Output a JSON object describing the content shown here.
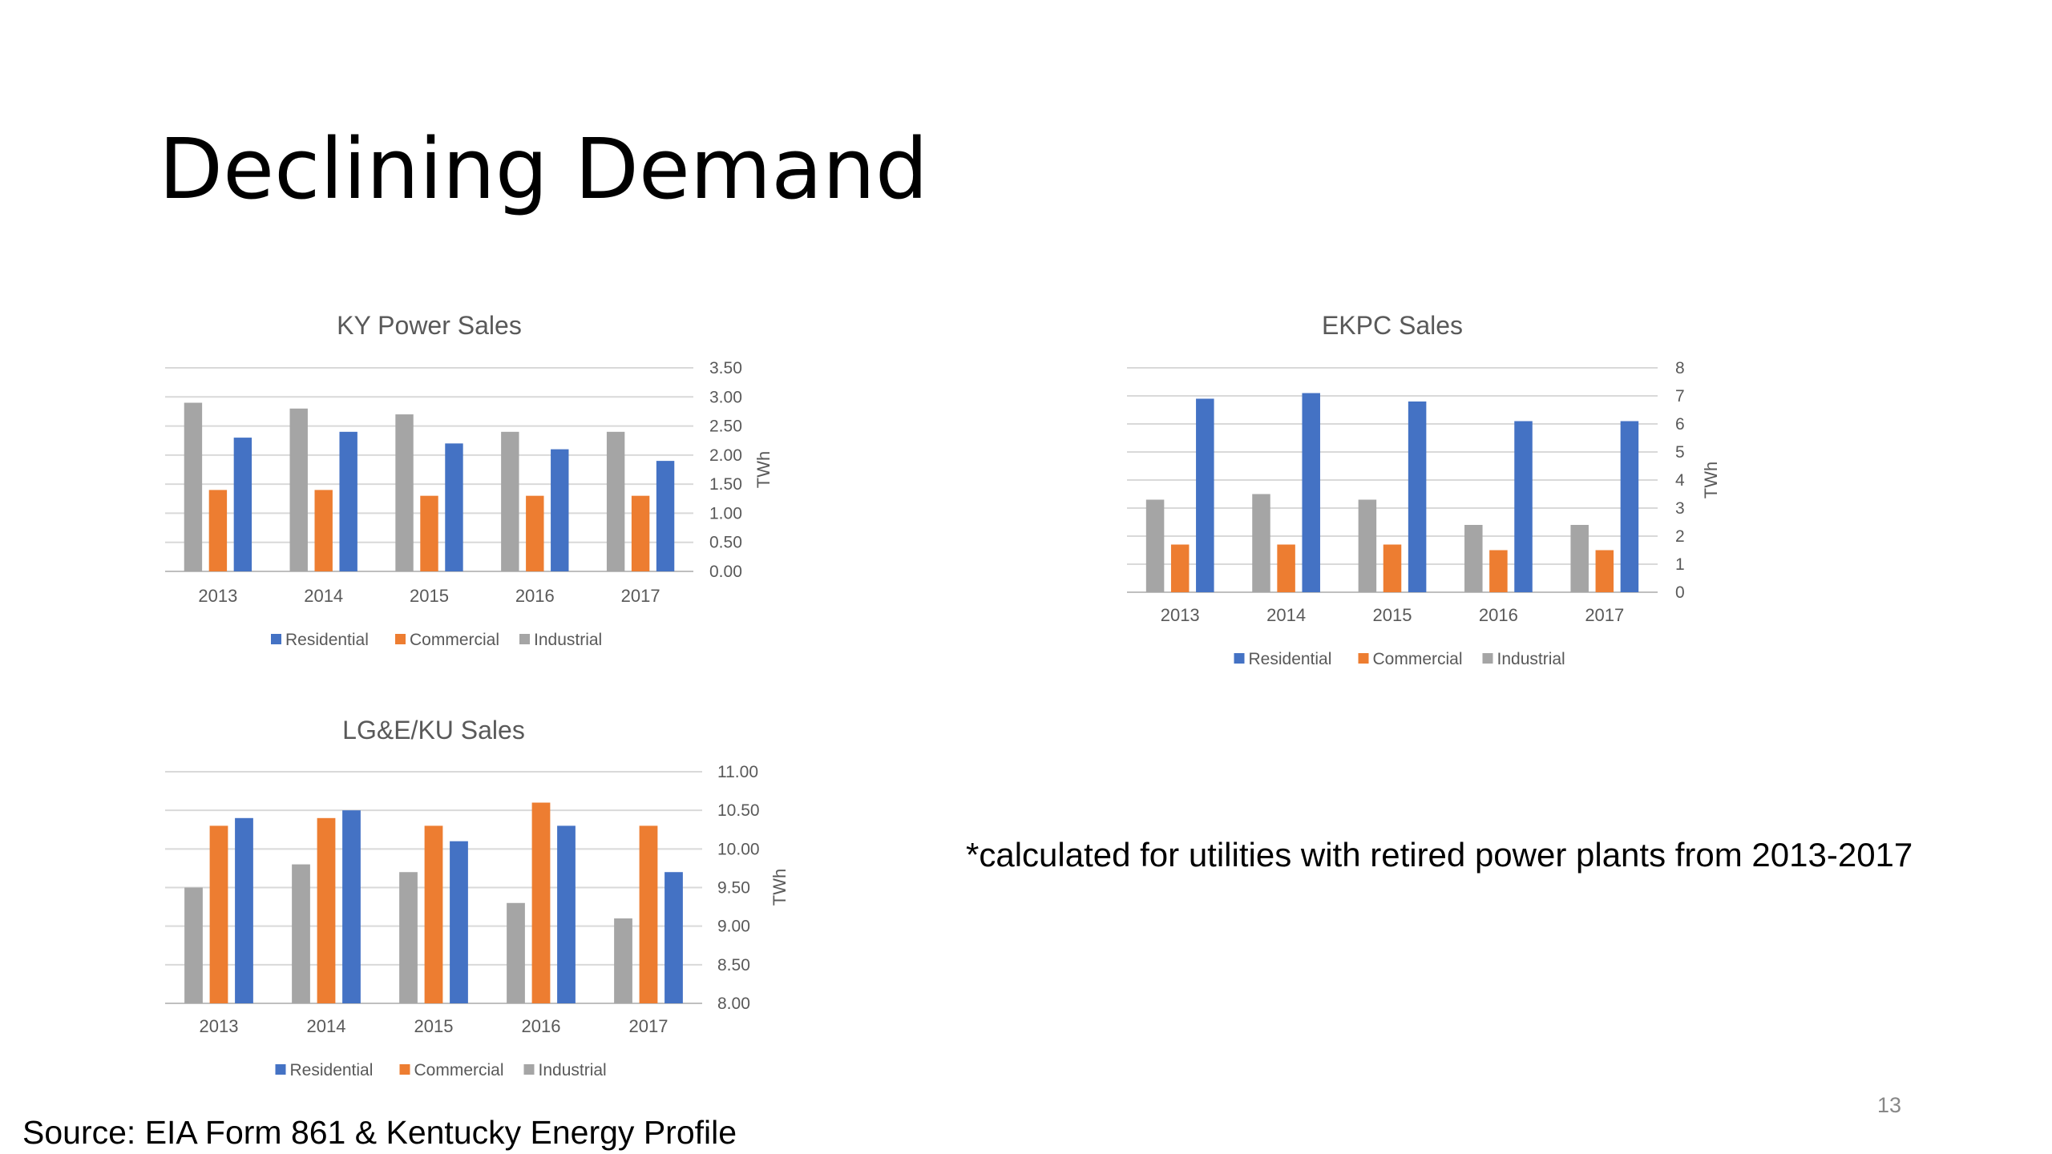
{
  "slide": {
    "title": "Declining Demand",
    "footnote": "*calculated for utilities with retired power plants from 2013-2017",
    "source": "Source: EIA Form 861 & Kentucky Energy Profile",
    "page_number": "13"
  },
  "colors": {
    "Residential": "#4472C4",
    "Commercial": "#ED7D31",
    "Industrial": "#A5A5A5",
    "grid": "#D9D9D9",
    "label": "#595959"
  },
  "chart_data": [
    {
      "id": "ky",
      "type": "bar",
      "title": "KY Power Sales",
      "categories": [
        "2013",
        "2014",
        "2015",
        "2016",
        "2017"
      ],
      "bar_order": [
        "Industrial",
        "Commercial",
        "Residential"
      ],
      "series": [
        {
          "name": "Residential",
          "values": [
            2.3,
            2.4,
            2.2,
            2.1,
            1.9
          ]
        },
        {
          "name": "Commercial",
          "values": [
            1.4,
            1.4,
            1.3,
            1.3,
            1.3
          ]
        },
        {
          "name": "Industrial",
          "values": [
            2.9,
            2.8,
            2.7,
            2.4,
            2.4
          ]
        }
      ],
      "ylim": [
        0,
        3.5
      ],
      "yticks": [
        "0.00",
        "0.50",
        "1.00",
        "1.50",
        "2.00",
        "2.50",
        "3.00",
        "3.50"
      ],
      "ylabel": "TWh",
      "yaxis_position": "right",
      "legend": [
        "Residential",
        "Commercial",
        "Industrial"
      ],
      "legend_position": "bottom",
      "grid": true
    },
    {
      "id": "ekpc",
      "type": "bar",
      "title": "EKPC Sales",
      "categories": [
        "2013",
        "2014",
        "2015",
        "2016",
        "2017"
      ],
      "bar_order": [
        "Industrial",
        "Commercial",
        "Residential"
      ],
      "series": [
        {
          "name": "Residential",
          "values": [
            6.9,
            7.1,
            6.8,
            6.1,
            6.1
          ]
        },
        {
          "name": "Commercial",
          "values": [
            1.7,
            1.7,
            1.7,
            1.5,
            1.5
          ]
        },
        {
          "name": "Industrial",
          "values": [
            3.3,
            3.5,
            3.3,
            2.4,
            2.4
          ]
        }
      ],
      "ylim": [
        0,
        8
      ],
      "yticks": [
        "0",
        "1",
        "2",
        "3",
        "4",
        "5",
        "6",
        "7",
        "8"
      ],
      "ylabel": "TWh",
      "yaxis_position": "right",
      "legend": [
        "Residential",
        "Commercial",
        "Industrial"
      ],
      "legend_position": "bottom",
      "grid": true
    },
    {
      "id": "lge",
      "type": "bar",
      "title": "LG&E/KU Sales",
      "categories": [
        "2013",
        "2014",
        "2015",
        "2016",
        "2017"
      ],
      "bar_order": [
        "Industrial",
        "Commercial",
        "Residential"
      ],
      "series": [
        {
          "name": "Residential",
          "values": [
            10.4,
            10.5,
            10.1,
            10.3,
            9.7
          ]
        },
        {
          "name": "Commercial",
          "values": [
            10.3,
            10.4,
            10.3,
            10.6,
            10.3
          ]
        },
        {
          "name": "Industrial",
          "values": [
            9.5,
            9.8,
            9.7,
            9.3,
            9.1
          ]
        }
      ],
      "ylim": [
        8,
        11
      ],
      "yticks": [
        "8.00",
        "8.50",
        "9.00",
        "9.50",
        "10.00",
        "10.50",
        "11.00"
      ],
      "ylabel": "TWh",
      "yaxis_position": "right",
      "legend": [
        "Residential",
        "Commercial",
        "Industrial"
      ],
      "legend_position": "bottom",
      "grid": true
    }
  ]
}
